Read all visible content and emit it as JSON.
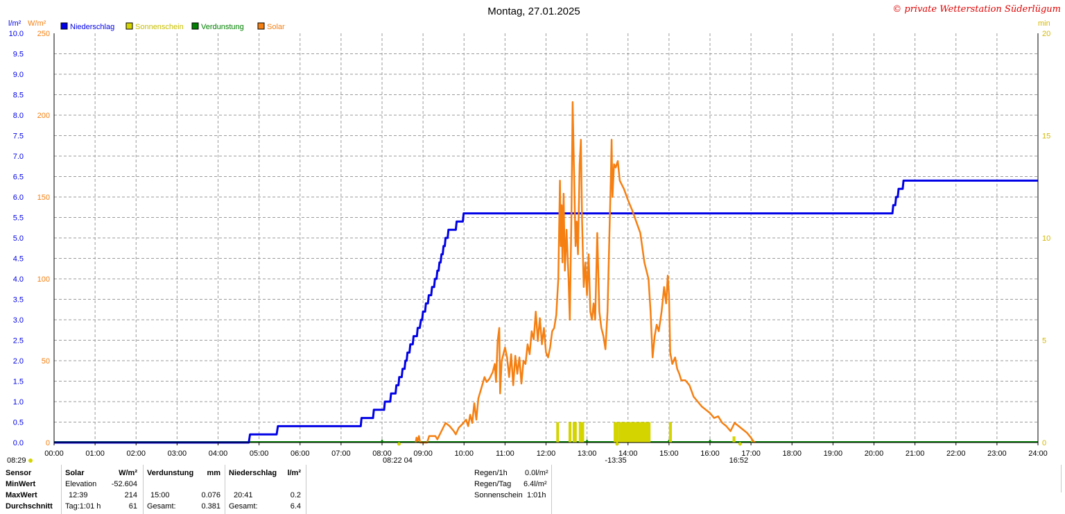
{
  "chart_data": {
    "type": "line",
    "title": "Montag, 27.01.2025",
    "copyright": "© private Wetterstation Süderlügum",
    "y_left_units": [
      "l/m²",
      "W/m²"
    ],
    "y_right_unit": "min",
    "legend": [
      {
        "name": "Niederschlag",
        "color": "#0000e6"
      },
      {
        "name": "Sonnenschein",
        "color": "#d4d400"
      },
      {
        "name": "Verdunstung",
        "color": "#008000"
      },
      {
        "name": "Solar",
        "color": "#f57f11"
      }
    ],
    "legend_placement": "top-left",
    "grid": true,
    "x_ticks": [
      "00:00",
      "01:00",
      "02:00",
      "03:00",
      "04:00",
      "05:00",
      "06:00",
      "07:00",
      "08:00",
      "09:00",
      "10:00",
      "11:00",
      "12:00",
      "13:00",
      "14:00",
      "15:00",
      "16:00",
      "17:00",
      "18:00",
      "19:00",
      "20:00",
      "21:00",
      "22:00",
      "23:00",
      "24:00"
    ],
    "x_range_hours": [
      0,
      24
    ],
    "rain_axis": {
      "range": [
        0,
        10
      ],
      "ticks": [
        "0.0",
        "0.5",
        "1.0",
        "1.5",
        "2.0",
        "2.5",
        "3.0",
        "3.5",
        "4.0",
        "4.5",
        "5.0",
        "5.5",
        "6.0",
        "6.5",
        "7.0",
        "7.5",
        "8.0",
        "8.5",
        "9.0",
        "9.5",
        "10.0"
      ]
    },
    "solar_axis": {
      "range": [
        0,
        250
      ],
      "ticks": [
        "0",
        "50",
        "100",
        "150",
        "200",
        "250"
      ]
    },
    "sunshine_axis": {
      "range": [
        0,
        20
      ],
      "ticks": [
        "0",
        "5",
        "10",
        "15",
        "20"
      ]
    },
    "series": [
      {
        "name": "Niederschlag",
        "axis": "rain",
        "color": "#0000e6",
        "points": [
          [
            0,
            0
          ],
          [
            4.75,
            0
          ],
          [
            4.78,
            0.2
          ],
          [
            5.43,
            0.2
          ],
          [
            5.46,
            0.4
          ],
          [
            7.48,
            0.4
          ],
          [
            7.5,
            0.6
          ],
          [
            7.78,
            0.6
          ],
          [
            7.8,
            0.8
          ],
          [
            8.05,
            0.8
          ],
          [
            8.07,
            1.0
          ],
          [
            8.2,
            1.0
          ],
          [
            8.22,
            1.2
          ],
          [
            8.33,
            1.2
          ],
          [
            8.35,
            1.4
          ],
          [
            8.4,
            1.4
          ],
          [
            8.42,
            1.6
          ],
          [
            8.48,
            1.6
          ],
          [
            8.5,
            1.8
          ],
          [
            8.55,
            1.8
          ],
          [
            8.57,
            2.0
          ],
          [
            8.6,
            2.0
          ],
          [
            8.62,
            2.2
          ],
          [
            8.67,
            2.2
          ],
          [
            8.69,
            2.4
          ],
          [
            8.75,
            2.4
          ],
          [
            8.77,
            2.6
          ],
          [
            8.85,
            2.6
          ],
          [
            8.87,
            2.8
          ],
          [
            8.92,
            2.8
          ],
          [
            8.95,
            3.0
          ],
          [
            8.98,
            3.0
          ],
          [
            9.0,
            3.2
          ],
          [
            9.05,
            3.2
          ],
          [
            9.07,
            3.4
          ],
          [
            9.12,
            3.4
          ],
          [
            9.14,
            3.6
          ],
          [
            9.2,
            3.6
          ],
          [
            9.22,
            3.8
          ],
          [
            9.27,
            3.8
          ],
          [
            9.29,
            4.0
          ],
          [
            9.33,
            4.0
          ],
          [
            9.35,
            4.2
          ],
          [
            9.38,
            4.2
          ],
          [
            9.4,
            4.4
          ],
          [
            9.43,
            4.4
          ],
          [
            9.45,
            4.6
          ],
          [
            9.48,
            4.6
          ],
          [
            9.5,
            4.8
          ],
          [
            9.53,
            4.8
          ],
          [
            9.55,
            5.0
          ],
          [
            9.6,
            5.0
          ],
          [
            9.62,
            5.2
          ],
          [
            9.8,
            5.2
          ],
          [
            9.82,
            5.4
          ],
          [
            9.97,
            5.4
          ],
          [
            9.99,
            5.6
          ],
          [
            20.45,
            5.6
          ],
          [
            20.47,
            5.8
          ],
          [
            20.52,
            5.8
          ],
          [
            20.54,
            6.0
          ],
          [
            20.58,
            6.0
          ],
          [
            20.6,
            6.2
          ],
          [
            20.7,
            6.2
          ],
          [
            20.72,
            6.4
          ],
          [
            24,
            6.4
          ]
        ]
      },
      {
        "name": "Solar",
        "axis": "solar",
        "color": "#f57f11",
        "points": [
          [
            8.82,
            0
          ],
          [
            8.84,
            3
          ],
          [
            8.87,
            1
          ],
          [
            8.9,
            4
          ],
          [
            8.93,
            0
          ],
          [
            9.0,
            0
          ],
          [
            9.1,
            0
          ],
          [
            9.15,
            4
          ],
          [
            9.3,
            4
          ],
          [
            9.35,
            2
          ],
          [
            9.45,
            7
          ],
          [
            9.55,
            12
          ],
          [
            9.65,
            10
          ],
          [
            9.75,
            7
          ],
          [
            9.8,
            5
          ],
          [
            9.87,
            9
          ],
          [
            9.95,
            11
          ],
          [
            10.05,
            14
          ],
          [
            10.1,
            10
          ],
          [
            10.15,
            17
          ],
          [
            10.2,
            12
          ],
          [
            10.25,
            24
          ],
          [
            10.3,
            14
          ],
          [
            10.35,
            27
          ],
          [
            10.42,
            33
          ],
          [
            10.5,
            40
          ],
          [
            10.55,
            37
          ],
          [
            10.62,
            39
          ],
          [
            10.7,
            43
          ],
          [
            10.75,
            48
          ],
          [
            10.78,
            37
          ],
          [
            10.82,
            62
          ],
          [
            10.86,
            70
          ],
          [
            10.88,
            30
          ],
          [
            10.92,
            50
          ],
          [
            11.0,
            58
          ],
          [
            11.05,
            52
          ],
          [
            11.1,
            40
          ],
          [
            11.15,
            54
          ],
          [
            11.2,
            35
          ],
          [
            11.25,
            53
          ],
          [
            11.3,
            42
          ],
          [
            11.35,
            52
          ],
          [
            11.4,
            36
          ],
          [
            11.45,
            50
          ],
          [
            11.5,
            48
          ],
          [
            11.55,
            60
          ],
          [
            11.6,
            54
          ],
          [
            11.65,
            68
          ],
          [
            11.7,
            63
          ],
          [
            11.75,
            80
          ],
          [
            11.8,
            62
          ],
          [
            11.85,
            76
          ],
          [
            11.9,
            60
          ],
          [
            11.95,
            70
          ],
          [
            12.0,
            55
          ],
          [
            12.05,
            52
          ],
          [
            12.1,
            58
          ],
          [
            12.15,
            68
          ],
          [
            12.2,
            70
          ],
          [
            12.25,
            78
          ],
          [
            12.3,
            100
          ],
          [
            12.32,
            130
          ],
          [
            12.34,
            160
          ],
          [
            12.36,
            120
          ],
          [
            12.38,
            145
          ],
          [
            12.4,
            110
          ],
          [
            12.43,
            152
          ],
          [
            12.46,
            105
          ],
          [
            12.5,
            130
          ],
          [
            12.55,
            100
          ],
          [
            12.58,
            75
          ],
          [
            12.62,
            140
          ],
          [
            12.65,
            208
          ],
          [
            12.68,
            170
          ],
          [
            12.72,
            120
          ],
          [
            12.75,
            135
          ],
          [
            12.78,
            115
          ],
          [
            12.82,
            170
          ],
          [
            12.85,
            185
          ],
          [
            12.88,
            135
          ],
          [
            12.92,
            95
          ],
          [
            12.96,
            110
          ],
          [
            13.0,
            90
          ],
          [
            13.04,
            115
          ],
          [
            13.08,
            80
          ],
          [
            13.12,
            75
          ],
          [
            13.16,
            85
          ],
          [
            13.2,
            75
          ],
          [
            13.25,
            128
          ],
          [
            13.3,
            80
          ],
          [
            13.35,
            70
          ],
          [
            13.4,
            65
          ],
          [
            13.45,
            57
          ],
          [
            13.5,
            80
          ],
          [
            13.55,
            130
          ],
          [
            13.58,
            160
          ],
          [
            13.6,
            185
          ],
          [
            13.62,
            150
          ],
          [
            13.66,
            170
          ],
          [
            13.7,
            168
          ],
          [
            13.75,
            172
          ],
          [
            13.8,
            160
          ],
          [
            13.9,
            155
          ],
          [
            14.0,
            148
          ],
          [
            14.1,
            142
          ],
          [
            14.2,
            135
          ],
          [
            14.3,
            128
          ],
          [
            14.4,
            110
          ],
          [
            14.5,
            100
          ],
          [
            14.55,
            80
          ],
          [
            14.6,
            52
          ],
          [
            14.65,
            65
          ],
          [
            14.7,
            72
          ],
          [
            14.75,
            68
          ],
          [
            14.82,
            80
          ],
          [
            14.88,
            95
          ],
          [
            14.93,
            85
          ],
          [
            14.97,
            102
          ],
          [
            15.0,
            90
          ],
          [
            15.03,
            55
          ],
          [
            15.08,
            48
          ],
          [
            15.15,
            52
          ],
          [
            15.2,
            45
          ],
          [
            15.25,
            42
          ],
          [
            15.3,
            38
          ],
          [
            15.4,
            38
          ],
          [
            15.5,
            35
          ],
          [
            15.6,
            28
          ],
          [
            15.7,
            25
          ],
          [
            15.8,
            22
          ],
          [
            15.9,
            20
          ],
          [
            16.0,
            18
          ],
          [
            16.1,
            15
          ],
          [
            16.2,
            16
          ],
          [
            16.3,
            12
          ],
          [
            16.4,
            10
          ],
          [
            16.5,
            7
          ],
          [
            16.6,
            12
          ],
          [
            16.7,
            10
          ],
          [
            16.8,
            8
          ],
          [
            16.9,
            6
          ],
          [
            17.0,
            3
          ],
          [
            17.05,
            1
          ],
          [
            17.1,
            0
          ]
        ]
      }
    ],
    "sunshine_bars": [
      [
        12.25,
        12.32,
        1
      ],
      [
        12.55,
        12.62,
        1
      ],
      [
        12.65,
        12.75,
        1
      ],
      [
        12.8,
        12.93,
        1
      ],
      [
        13.65,
        13.78,
        1
      ],
      [
        13.78,
        14.55,
        1
      ],
      [
        15.0,
        15.07,
        1
      ],
      [
        16.55,
        16.62,
        0.3
      ],
      [
        17.0,
        17.03,
        0.2
      ]
    ],
    "evaporation_markers": [
      8.0,
      13.0,
      14.0,
      15.0,
      16.0
    ],
    "time_markers": [
      {
        "label": "08:29",
        "pos": "left"
      },
      {
        "label": "08:22 04",
        "time": 8.38
      },
      {
        "label": "-13:35",
        "time": 13.7
      },
      {
        "label": "16:52",
        "time": 16.7
      }
    ],
    "stats_table": {
      "headers": {
        "sensor": "Sensor",
        "solar": "Solar",
        "solar_unit": "W/m²",
        "evap": "Verdunstung",
        "evap_unit": "mm",
        "rain": "Niederschlag",
        "rain_unit": "l/m²"
      },
      "row_labels": [
        "MinWert",
        "MaxWert",
        "Durchschnitt"
      ],
      "solar_rows": [
        [
          "Elevation",
          "-52.604"
        ],
        [
          "12:39",
          "214"
        ],
        [
          "Tag:1:01 h",
          "61"
        ]
      ],
      "evap_rows": [
        [
          "",
          ""
        ],
        [
          "15:00",
          "0.076"
        ],
        [
          "Gesamt:",
          "0.381"
        ]
      ],
      "rain_rows": [
        [
          "",
          ""
        ],
        [
          "20:41",
          "0.2"
        ],
        [
          "Gesamt:",
          "6.4"
        ]
      ]
    },
    "summary": [
      {
        "label": "Regen/1h",
        "value": "0.0l/m²"
      },
      {
        "label": "Regen/Tag",
        "value": "6.4l/m²"
      },
      {
        "label": "Sonnenschein",
        "value": "1:01h"
      }
    ]
  }
}
